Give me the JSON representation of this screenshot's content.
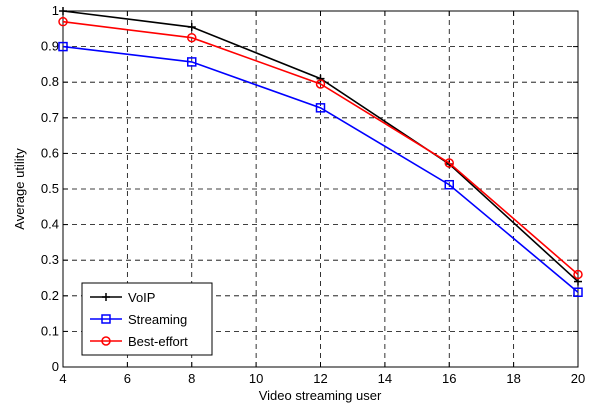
{
  "chart_data": {
    "type": "line",
    "xlabel": "Video streaming user",
    "ylabel": "Average utility",
    "xlim": [
      4,
      20
    ],
    "ylim": [
      0,
      1
    ],
    "xticks": [
      4,
      6,
      8,
      10,
      12,
      14,
      16,
      18,
      20
    ],
    "yticks": [
      0,
      0.1,
      0.2,
      0.3,
      0.4,
      0.5,
      0.6,
      0.7,
      0.8,
      0.9,
      1
    ],
    "ytick_labels": [
      "0",
      "0.1",
      "0.2",
      "0.3",
      "0.4",
      "0.5",
      "0.6",
      "0.7",
      "0.8",
      "0.9",
      "1"
    ],
    "grid": true,
    "legend_position": "bottom-left",
    "x": [
      4,
      8,
      12,
      16,
      20
    ],
    "series": [
      {
        "name": "VoIP",
        "color": "#000000",
        "marker": "plus",
        "values": [
          1.0,
          0.955,
          0.81,
          0.57,
          0.24
        ]
      },
      {
        "name": "Streaming",
        "color": "#0000ff",
        "marker": "square",
        "values": [
          0.9,
          0.857,
          0.728,
          0.512,
          0.21
        ]
      },
      {
        "name": "Best-effort",
        "color": "#ff0000",
        "marker": "circle",
        "values": [
          0.97,
          0.925,
          0.795,
          0.573,
          0.26
        ]
      }
    ]
  }
}
